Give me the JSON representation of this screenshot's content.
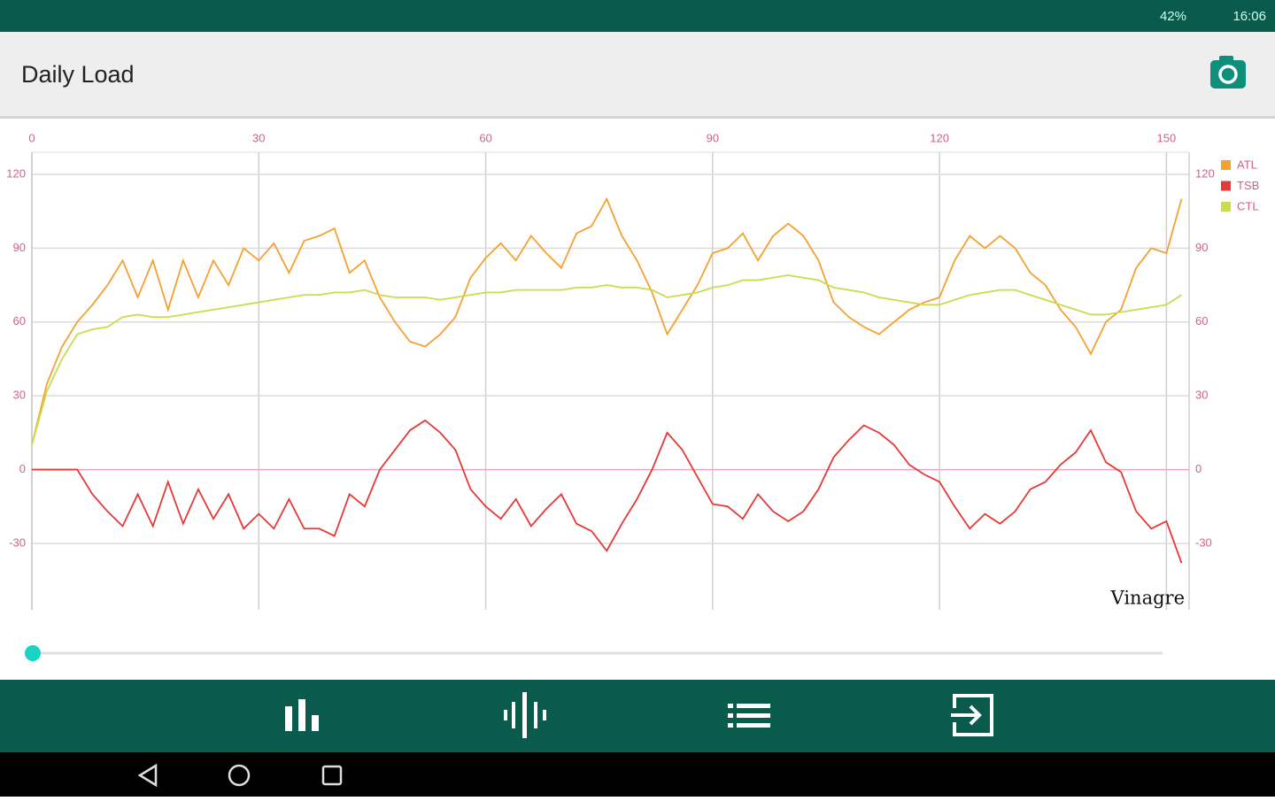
{
  "status_bar": {
    "battery": "42%",
    "time": "16:06"
  },
  "app_bar": {
    "title": "Daily Load"
  },
  "chart_data": {
    "type": "line",
    "x": [
      0,
      2,
      4,
      6,
      8,
      10,
      12,
      14,
      16,
      18,
      20,
      22,
      24,
      26,
      28,
      30,
      32,
      34,
      36,
      38,
      40,
      42,
      44,
      46,
      48,
      50,
      52,
      54,
      56,
      58,
      60,
      62,
      64,
      66,
      68,
      70,
      72,
      74,
      76,
      78,
      80,
      82,
      84,
      86,
      88,
      90,
      92,
      94,
      96,
      98,
      100,
      102,
      104,
      106,
      108,
      110,
      112,
      114,
      116,
      118,
      120,
      122,
      124,
      126,
      128,
      130,
      132,
      134,
      136,
      138,
      140,
      142,
      144,
      146,
      148,
      150,
      152
    ],
    "series": [
      {
        "name": "ATL",
        "color": "#f5a130",
        "values": [
          10,
          35,
          50,
          60,
          67,
          75,
          85,
          70,
          85,
          65,
          85,
          70,
          85,
          75,
          90,
          85,
          92,
          80,
          93,
          95,
          98,
          80,
          85,
          70,
          60,
          52,
          50,
          55,
          62,
          78,
          86,
          92,
          85,
          95,
          88,
          82,
          96,
          99,
          110,
          95,
          85,
          72,
          55,
          65,
          75,
          88,
          90,
          96,
          85,
          95,
          100,
          95,
          85,
          68,
          62,
          58,
          55,
          60,
          65,
          68,
          70,
          85,
          95,
          90,
          95,
          90,
          80,
          75,
          65,
          58,
          47,
          60,
          65,
          82,
          90,
          88,
          110
        ]
      },
      {
        "name": "TSB",
        "color": "#e53935",
        "values": [
          0,
          0,
          0,
          0,
          -10,
          -17,
          -23,
          -10,
          -23,
          -5,
          -22,
          -8,
          -20,
          -10,
          -24,
          -18,
          -24,
          -12,
          -24,
          -24,
          -27,
          -10,
          -15,
          0,
          8,
          16,
          20,
          15,
          8,
          -8,
          -15,
          -20,
          -12,
          -23,
          -16,
          -10,
          -22,
          -25,
          -33,
          -22,
          -12,
          0,
          15,
          8,
          -3,
          -14,
          -15,
          -20,
          -10,
          -17,
          -21,
          -17,
          -8,
          5,
          12,
          18,
          15,
          10,
          2,
          -2,
          -5,
          -15,
          -24,
          -18,
          -22,
          -17,
          -8,
          -5,
          2,
          7,
          16,
          3,
          -1,
          -17,
          -24,
          -21,
          -38
        ]
      },
      {
        "name": "CTL",
        "color": "#c9dd4c",
        "values": [
          10,
          32,
          45,
          55,
          57,
          58,
          62,
          63,
          62,
          62,
          63,
          64,
          65,
          66,
          67,
          68,
          69,
          70,
          71,
          71,
          72,
          72,
          73,
          71,
          70,
          70,
          70,
          69,
          70,
          71,
          72,
          72,
          73,
          73,
          73,
          73,
          74,
          74,
          75,
          74,
          74,
          73,
          70,
          71,
          72,
          74,
          75,
          77,
          77,
          78,
          79,
          78,
          77,
          74,
          73,
          72,
          70,
          69,
          68,
          67,
          67,
          69,
          71,
          72,
          73,
          73,
          71,
          69,
          67,
          65,
          63,
          63,
          64,
          65,
          66,
          67,
          71
        ]
      }
    ],
    "xlim": [
      0,
      153
    ],
    "xticks": [
      0,
      30,
      60,
      90,
      120,
      150
    ],
    "ylim": [
      -57,
      129
    ],
    "yticks": [
      -30,
      0,
      30,
      60,
      90,
      120
    ],
    "y2lim": [
      -57,
      129
    ],
    "y2ticks": [
      -30,
      0,
      30,
      60,
      90,
      120
    ],
    "grid": true,
    "legend": "top-right",
    "watermark": "Vinagre"
  }
}
